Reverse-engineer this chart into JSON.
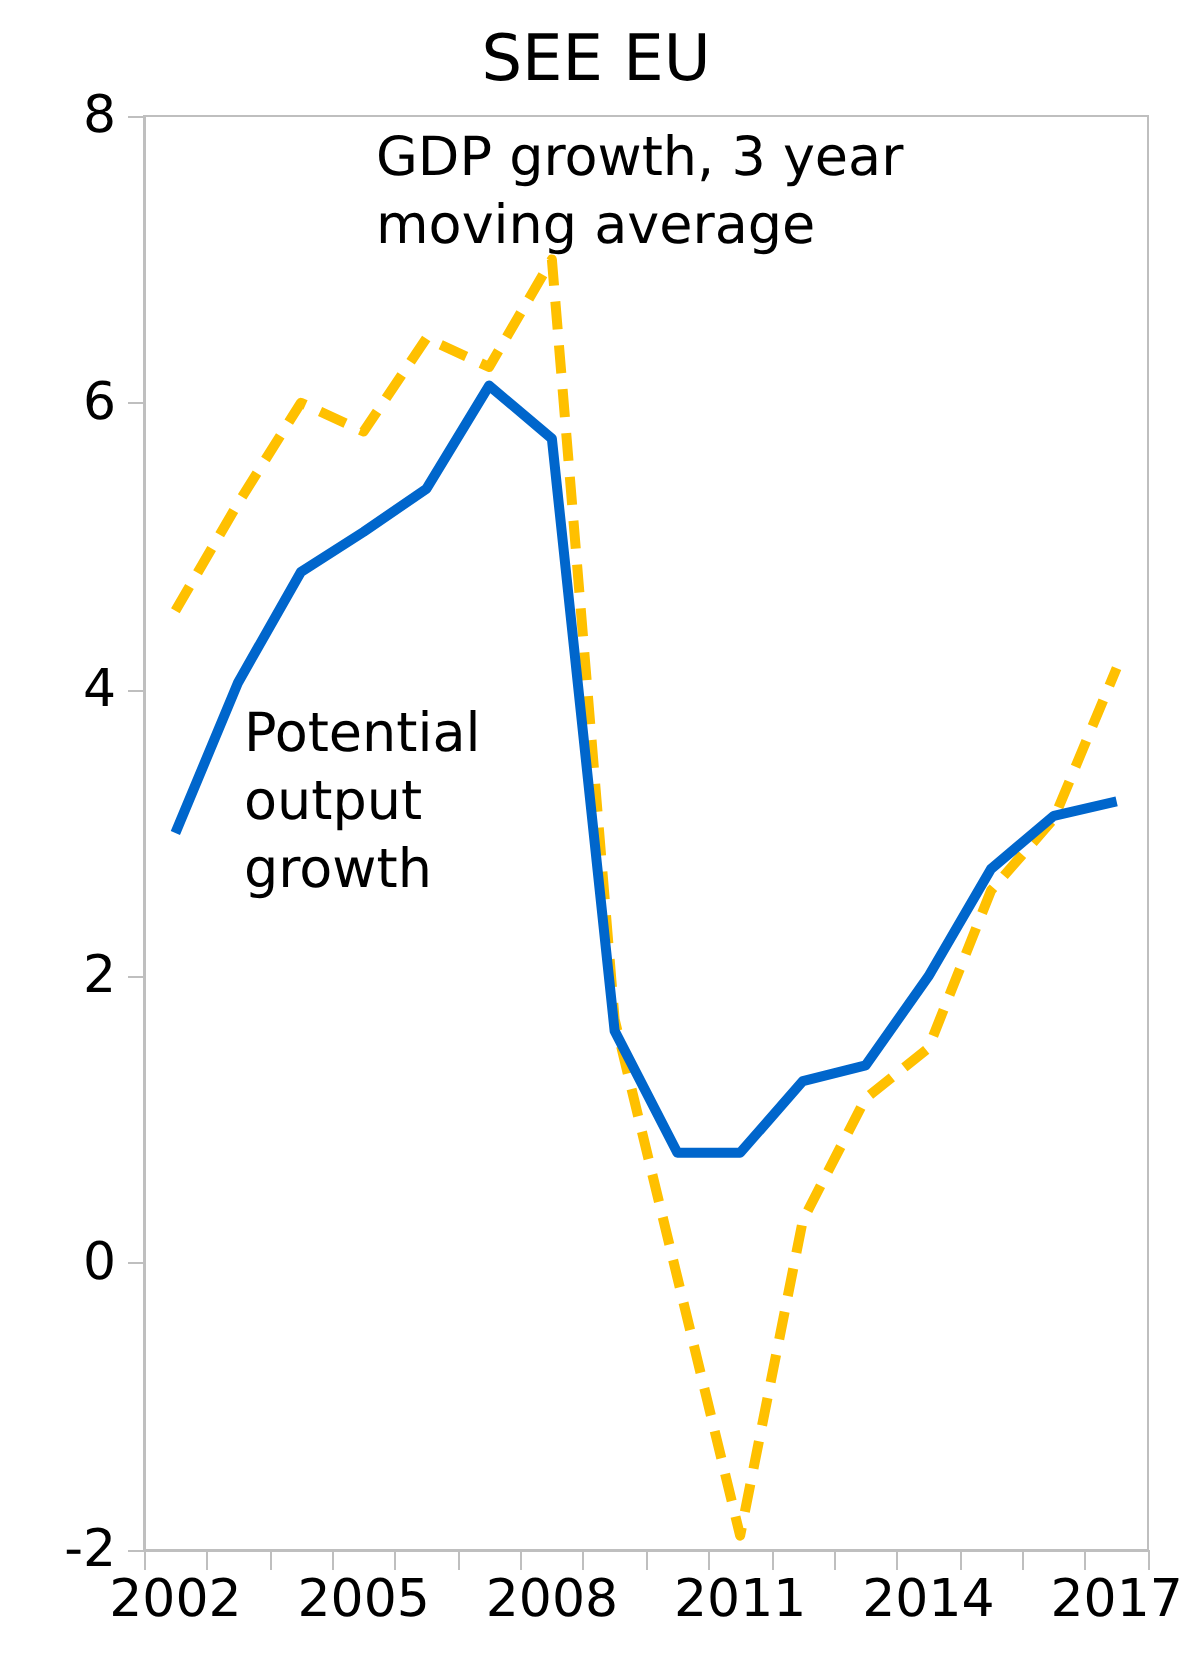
{
  "chart_data": {
    "type": "line",
    "title": "SEE EU",
    "categories": [
      "2002",
      null,
      null,
      "2005",
      null,
      null,
      "2008",
      null,
      null,
      "2011",
      null,
      null,
      "2014",
      null,
      null,
      "2017"
    ],
    "series": [
      {
        "name": "GDP growth, 3 year moving average",
        "color": "#ffc000",
        "line_style": "dashed",
        "values": [
          4.55,
          5.3,
          6.0,
          5.8,
          6.45,
          6.25,
          7.0,
          1.7,
          -0.1,
          -1.9,
          0.3,
          1.15,
          1.5,
          2.6,
          3.1,
          4.15
        ]
      },
      {
        "name": "Potential output growth",
        "color": "#0066cc",
        "line_style": "solid",
        "values": [
          3.0,
          4.05,
          4.82,
          5.1,
          5.4,
          6.12,
          5.75,
          1.62,
          0.77,
          0.77,
          1.27,
          1.38,
          2.0,
          2.75,
          3.12,
          3.22
        ]
      }
    ],
    "ylim": [
      -2,
      8
    ],
    "yticks": [
      -2,
      0,
      2,
      4,
      6,
      8
    ],
    "grid": false,
    "legend": false,
    "marker": "none"
  }
}
